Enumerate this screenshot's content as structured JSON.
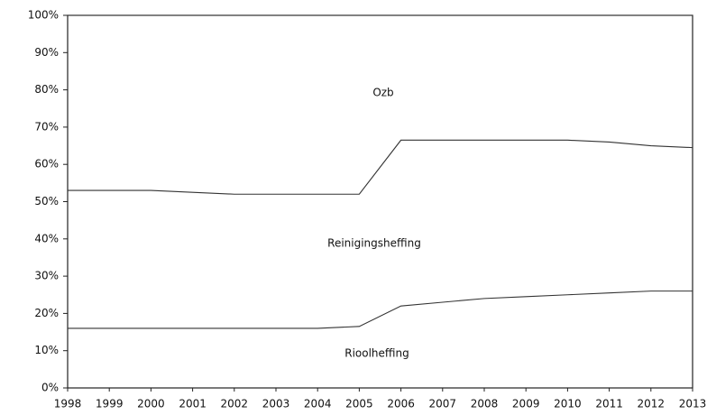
{
  "chart_data": {
    "type": "stacked_area",
    "x": [
      1998,
      1999,
      2000,
      2001,
      2002,
      2003,
      2004,
      2005,
      2006,
      2007,
      2008,
      2009,
      2010,
      2011,
      2012,
      2013
    ],
    "series": [
      {
        "name": "Rioolheffing",
        "color": "#333333",
        "values": [
          16,
          16,
          16,
          16,
          16,
          16,
          16,
          16.5,
          22,
          23,
          24,
          24.5,
          25,
          25.5,
          26,
          26
        ]
      },
      {
        "name": "Reinigingsheffing",
        "color": "#333333",
        "values": [
          37,
          37,
          37,
          36.5,
          36,
          36,
          36,
          35.5,
          44.5,
          43.5,
          42.5,
          42,
          41.5,
          40.5,
          39,
          38.5
        ]
      },
      {
        "name": "Ozb",
        "color": "#333333",
        "values": [
          47,
          47,
          47,
          47.5,
          48,
          48,
          48,
          48,
          33.5,
          33.5,
          33.5,
          33.5,
          33.5,
          34,
          35,
          35.5
        ]
      }
    ],
    "xlim": [
      1998,
      2013
    ],
    "ylim": [
      0,
      100
    ],
    "yticks": [
      {
        "value": 0,
        "label": "0%"
      },
      {
        "value": 10,
        "label": "10%"
      },
      {
        "value": 20,
        "label": "20%"
      },
      {
        "value": 30,
        "label": "30%"
      },
      {
        "value": 40,
        "label": "40%"
      },
      {
        "value": 50,
        "label": "50%"
      },
      {
        "value": 60,
        "label": "60%"
      },
      {
        "value": 70,
        "label": "70%"
      },
      {
        "value": 80,
        "label": "80%"
      },
      {
        "value": 90,
        "label": "90%"
      },
      {
        "value": 100,
        "label": "100%"
      }
    ]
  }
}
